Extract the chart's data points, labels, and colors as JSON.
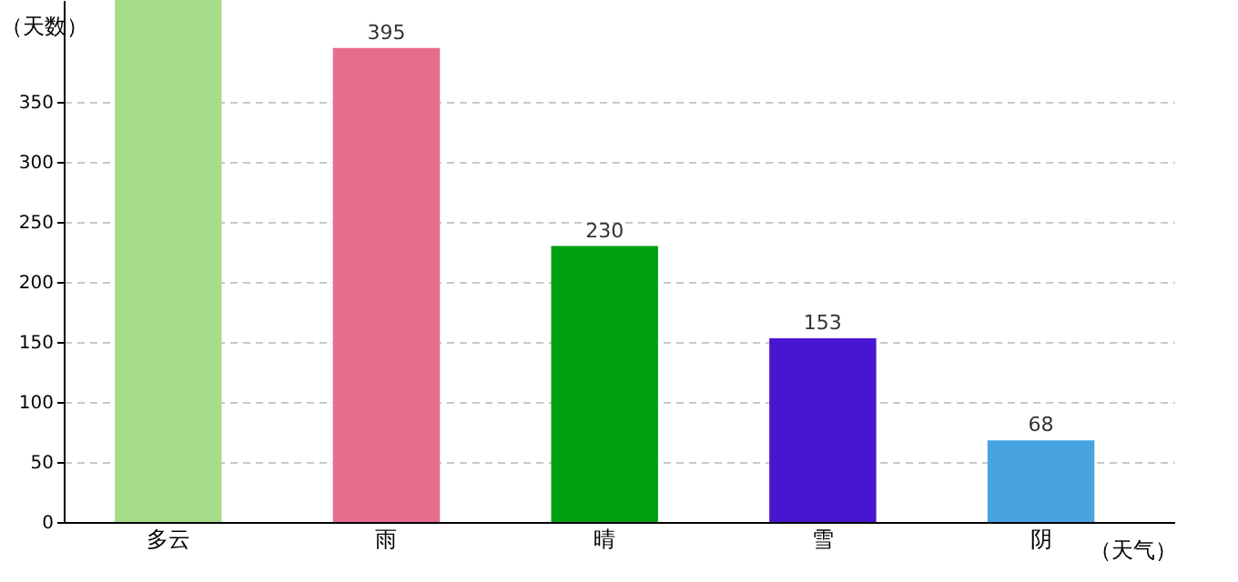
{
  "chart_data": {
    "type": "bar",
    "ylabel": "（天数）",
    "xlabel": "（天气）",
    "categories": [
      "多云",
      "雨",
      "晴",
      "雪",
      "阴"
    ],
    "values": [
      435,
      395,
      230,
      153,
      68
    ],
    "colors": [
      "#a6dd8b",
      "#e66d8d",
      "#00a013",
      "#4a15d1",
      "#47a4e0"
    ],
    "value_labels": [
      null,
      "395",
      "230",
      "153",
      "68"
    ],
    "ylim": [
      0,
      435
    ],
    "yticks": [
      0,
      50,
      100,
      150,
      200,
      250,
      300,
      350
    ],
    "grid": "y"
  }
}
